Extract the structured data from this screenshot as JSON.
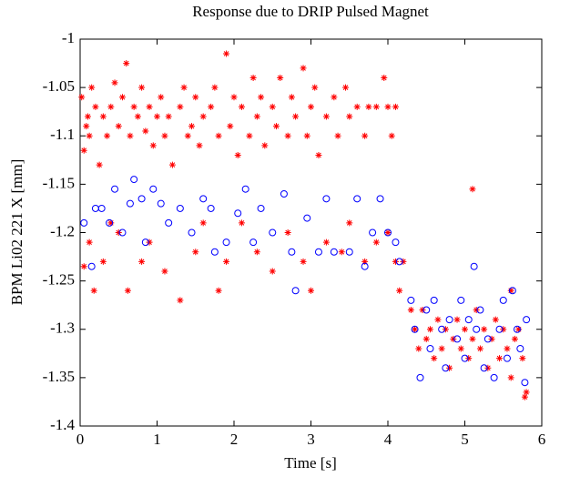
{
  "chart_data": {
    "type": "scatter",
    "title": "Response due to DRIP Pulsed Magnet",
    "x_label": "Time [s]",
    "y_label": "BPM Li02 221 X [mm]",
    "xlim": [
      0,
      6
    ],
    "ylim": [
      -1.4,
      -1
    ],
    "xticks": [
      0,
      1,
      2,
      3,
      4,
      5,
      6
    ],
    "yticks": [
      -1.4,
      -1.35,
      -1.3,
      -1.25,
      -1.2,
      -1.15,
      -1.1,
      -1.05,
      -1
    ],
    "grid": false,
    "series": [
      {
        "color": "#ff0000",
        "marker": "asterisk",
        "x": [
          0.02,
          0.05,
          0.08,
          0.1,
          0.12,
          0.15,
          0.2,
          0.25,
          0.3,
          0.35,
          0.4,
          0.45,
          0.5,
          0.55,
          0.6,
          0.65,
          0.7,
          0.75,
          0.8,
          0.85,
          0.9,
          0.95,
          1.0,
          1.05,
          1.1,
          1.15,
          1.2,
          1.3,
          1.35,
          1.4,
          1.45,
          1.5,
          1.55,
          1.6,
          1.7,
          1.75,
          1.8,
          1.9,
          1.95,
          2.0,
          2.05,
          2.1,
          2.2,
          2.25,
          2.3,
          2.35,
          2.4,
          2.5,
          2.55,
          2.6,
          2.7,
          2.75,
          2.8,
          2.9,
          2.95,
          3.0,
          3.05,
          3.1,
          3.2,
          3.3,
          3.35,
          3.45,
          3.5,
          3.6,
          3.7,
          3.75,
          3.85,
          3.95,
          4.0,
          4.05,
          4.1,
          0.05,
          0.12,
          0.18,
          0.3,
          0.4,
          0.5,
          0.62,
          0.8,
          0.9,
          1.1,
          1.3,
          1.5,
          1.6,
          1.8,
          1.9,
          2.1,
          2.3,
          2.5,
          2.7,
          2.9,
          3.0,
          3.2,
          3.4,
          3.5,
          3.7,
          3.85,
          4.0,
          4.1,
          4.2,
          4.15,
          4.3,
          4.35,
          4.4,
          4.45,
          4.5,
          4.55,
          4.6,
          4.65,
          4.7,
          4.75,
          4.8,
          4.85,
          4.9,
          4.95,
          5.0,
          5.05,
          5.1,
          5.1,
          5.15,
          5.2,
          5.25,
          5.3,
          5.35,
          5.4,
          5.45,
          5.5,
          5.55,
          5.6,
          5.65,
          5.7,
          5.75,
          5.78,
          5.8,
          5.6
        ],
        "values": [
          -1.06,
          -1.115,
          -1.09,
          -1.08,
          -1.1,
          -1.05,
          -1.07,
          -1.13,
          -1.08,
          -1.1,
          -1.07,
          -1.045,
          -1.09,
          -1.06,
          -1.025,
          -1.1,
          -1.07,
          -1.08,
          -1.05,
          -1.095,
          -1.07,
          -1.11,
          -1.08,
          -1.06,
          -1.1,
          -1.08,
          -1.13,
          -1.07,
          -1.05,
          -1.1,
          -1.09,
          -1.06,
          -1.11,
          -1.08,
          -1.07,
          -1.05,
          -1.1,
          -1.015,
          -1.09,
          -1.06,
          -1.12,
          -1.07,
          -1.1,
          -1.04,
          -1.08,
          -1.06,
          -1.11,
          -1.07,
          -1.09,
          -1.04,
          -1.1,
          -1.06,
          -1.08,
          -1.03,
          -1.1,
          -1.07,
          -1.05,
          -1.12,
          -1.08,
          -1.06,
          -1.1,
          -1.05,
          -1.08,
          -1.07,
          -1.1,
          -1.07,
          -1.07,
          -1.04,
          -1.07,
          -1.1,
          -1.07,
          -1.235,
          -1.21,
          -1.26,
          -1.23,
          -1.19,
          -1.2,
          -1.26,
          -1.23,
          -1.21,
          -1.24,
          -1.27,
          -1.22,
          -1.19,
          -1.26,
          -1.23,
          -1.19,
          -1.22,
          -1.24,
          -1.2,
          -1.23,
          -1.26,
          -1.21,
          -1.22,
          -1.19,
          -1.23,
          -1.21,
          -1.2,
          -1.23,
          -1.23,
          -1.26,
          -1.28,
          -1.3,
          -1.32,
          -1.28,
          -1.31,
          -1.3,
          -1.33,
          -1.29,
          -1.32,
          -1.3,
          -1.34,
          -1.31,
          -1.29,
          -1.32,
          -1.3,
          -1.33,
          -1.31,
          -1.155,
          -1.28,
          -1.32,
          -1.3,
          -1.34,
          -1.31,
          -1.29,
          -1.33,
          -1.3,
          -1.32,
          -1.35,
          -1.31,
          -1.3,
          -1.33,
          -1.37,
          -1.365,
          -1.26
        ]
      },
      {
        "color": "#0000ff",
        "marker": "circle",
        "x": [
          0.05,
          0.15,
          0.2,
          0.28,
          0.38,
          0.45,
          0.55,
          0.65,
          0.7,
          0.8,
          0.85,
          0.95,
          1.05,
          1.15,
          1.3,
          1.45,
          1.6,
          1.7,
          1.75,
          1.9,
          2.05,
          2.15,
          2.25,
          2.35,
          2.5,
          2.65,
          2.75,
          2.8,
          2.95,
          3.1,
          3.2,
          3.3,
          3.5,
          3.6,
          3.7,
          3.8,
          3.9,
          4.0,
          4.1,
          4.15,
          4.3,
          4.35,
          4.42,
          4.5,
          4.55,
          4.6,
          4.7,
          4.75,
          4.8,
          4.9,
          4.95,
          5.0,
          5.05,
          5.12,
          5.15,
          5.2,
          5.25,
          5.3,
          5.38,
          5.45,
          5.5,
          5.55,
          5.62,
          5.68,
          5.72,
          5.78,
          5.8
        ],
        "values": [
          -1.19,
          -1.235,
          -1.175,
          -1.175,
          -1.19,
          -1.155,
          -1.2,
          -1.17,
          -1.145,
          -1.165,
          -1.21,
          -1.155,
          -1.17,
          -1.19,
          -1.175,
          -1.2,
          -1.165,
          -1.175,
          -1.22,
          -1.21,
          -1.18,
          -1.155,
          -1.21,
          -1.175,
          -1.2,
          -1.16,
          -1.22,
          -1.26,
          -1.185,
          -1.22,
          -1.165,
          -1.22,
          -1.22,
          -1.165,
          -1.235,
          -1.2,
          -1.165,
          -1.2,
          -1.21,
          -1.23,
          -1.27,
          -1.3,
          -1.35,
          -1.28,
          -1.32,
          -1.27,
          -1.3,
          -1.34,
          -1.29,
          -1.31,
          -1.27,
          -1.33,
          -1.29,
          -1.235,
          -1.3,
          -1.28,
          -1.34,
          -1.31,
          -1.35,
          -1.3,
          -1.27,
          -1.33,
          -1.26,
          -1.3,
          -1.32,
          -1.355,
          -1.29
        ]
      }
    ]
  }
}
